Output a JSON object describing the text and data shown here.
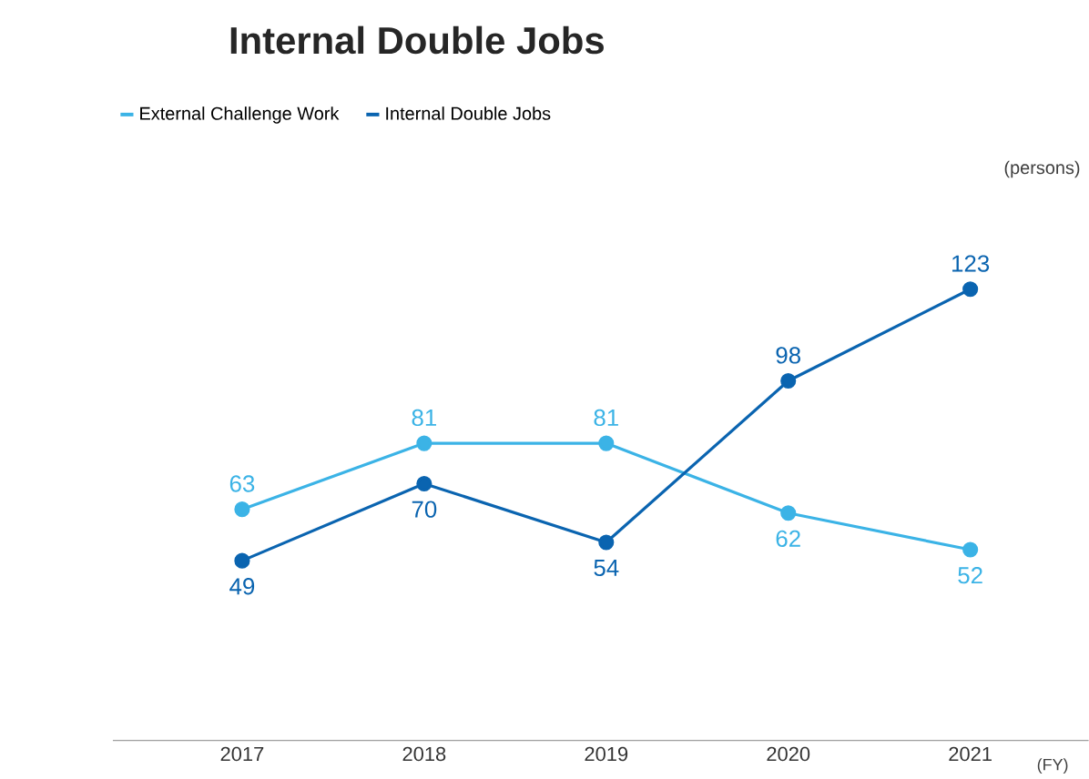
{
  "chart_data": {
    "type": "line",
    "title": "Internal Double Jobs",
    "categories": [
      "2017",
      "2018",
      "2019",
      "2020",
      "2021"
    ],
    "series": [
      {
        "name": "External Challenge Work",
        "color": "#3bb3e6",
        "values": [
          63,
          81,
          81,
          62,
          52
        ]
      },
      {
        "name": "Internal Double Jobs",
        "color": "#0a64b0",
        "values": [
          49,
          70,
          54,
          98,
          123
        ]
      }
    ],
    "annotations": [
      "(persons)",
      "(FY)"
    ],
    "data_labels": true,
    "legend": "top left",
    "marker": "circle",
    "line_style": "solid",
    "grid": false
  }
}
